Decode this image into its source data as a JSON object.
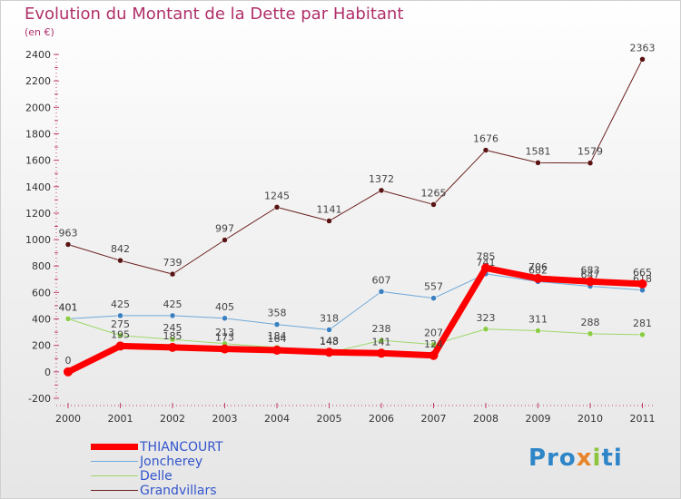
{
  "title": "Evolution du Montant de la Dette par Habitant",
  "subtitle": "(en €)",
  "logo": [
    "Pro",
    "x",
    "i",
    "ti"
  ],
  "chart_data": {
    "type": "line",
    "x": [
      "2000",
      "2001",
      "2002",
      "2003",
      "2004",
      "2005",
      "2006",
      "2007",
      "2008",
      "2009",
      "2010",
      "2011"
    ],
    "ylim": [
      -200,
      2400
    ],
    "yticks": [
      -200,
      0,
      200,
      400,
      600,
      800,
      1000,
      1200,
      1400,
      1600,
      1800,
      2000,
      2200,
      2400
    ],
    "grid": false,
    "legend_position": "bottom-left",
    "series": [
      {
        "name": "Grandvillars",
        "color": "#6b1f1f",
        "width": 1,
        "values": [
          963,
          842,
          739,
          997,
          1245,
          1141,
          1372,
          1265,
          1676,
          1581,
          1579,
          2363
        ]
      },
      {
        "name": "Joncherey",
        "color": "#6fa8d8",
        "width": 1,
        "values": [
          401,
          425,
          425,
          405,
          358,
          318,
          607,
          557,
          741,
          682,
          647,
          618
        ]
      },
      {
        "name": "Delle",
        "color": "#9ed86a",
        "width": 1,
        "values": [
          401,
          275,
          245,
          213,
          184,
          143,
          238,
          207,
          323,
          311,
          288,
          281
        ]
      },
      {
        "name": "THIANCOURT",
        "color": "#ff0000",
        "width": 7,
        "values": [
          0,
          195,
          185,
          173,
          164,
          148,
          141,
          124,
          785,
          706,
          683,
          665
        ]
      }
    ]
  },
  "legend_order": [
    3,
    1,
    2,
    0
  ],
  "colors": {
    "title": "#b0306a",
    "legend_text": "#3355cc",
    "marker_fill_grandvillars": "#5a1414",
    "marker_fill_joncherey": "#3a7fc0",
    "marker_fill_delle": "#8acd44"
  }
}
